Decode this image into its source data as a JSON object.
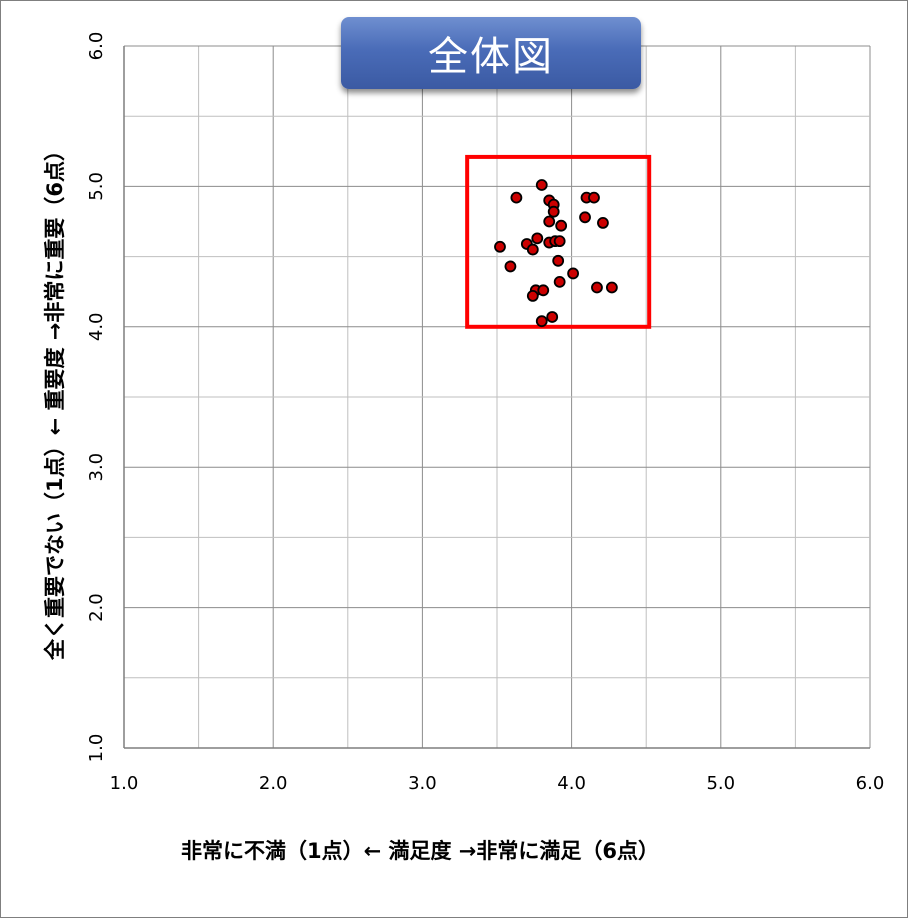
{
  "chart_data": {
    "type": "scatter",
    "title": "全体図",
    "xlabel": "非常に不満（1点）←  満足度  →非常に満足（6点）",
    "ylabel": "全く重要でない（1点）←  重要度  →非常に重要（6点）",
    "xlim": [
      1.0,
      6.0
    ],
    "ylim": [
      1.0,
      6.0
    ],
    "x_ticks": [
      "1.0",
      "2.0",
      "3.0",
      "4.0",
      "5.0",
      "6.0"
    ],
    "y_ticks": [
      "1.0",
      "2.0",
      "3.0",
      "4.0",
      "5.0",
      "6.0"
    ],
    "grid": true,
    "marker_color": "#cc0000",
    "marker_edge_color": "#000000",
    "highlight_box": {
      "x0": 3.3,
      "x1": 4.52,
      "y0": 4.0,
      "y1": 5.21,
      "color": "#ff0000"
    },
    "points": [
      {
        "x": 3.8,
        "y": 5.01
      },
      {
        "x": 3.63,
        "y": 4.92
      },
      {
        "x": 3.85,
        "y": 4.9
      },
      {
        "x": 4.1,
        "y": 4.92
      },
      {
        "x": 4.15,
        "y": 4.92
      },
      {
        "x": 3.88,
        "y": 4.87
      },
      {
        "x": 3.88,
        "y": 4.82
      },
      {
        "x": 4.09,
        "y": 4.78
      },
      {
        "x": 3.85,
        "y": 4.75
      },
      {
        "x": 4.21,
        "y": 4.74
      },
      {
        "x": 3.93,
        "y": 4.72
      },
      {
        "x": 3.77,
        "y": 4.63
      },
      {
        "x": 3.85,
        "y": 4.6
      },
      {
        "x": 3.89,
        "y": 4.61
      },
      {
        "x": 3.92,
        "y": 4.61
      },
      {
        "x": 3.7,
        "y": 4.59
      },
      {
        "x": 3.52,
        "y": 4.57
      },
      {
        "x": 3.74,
        "y": 4.55
      },
      {
        "x": 3.91,
        "y": 4.47
      },
      {
        "x": 3.59,
        "y": 4.43
      },
      {
        "x": 4.01,
        "y": 4.38
      },
      {
        "x": 3.92,
        "y": 4.32
      },
      {
        "x": 4.17,
        "y": 4.28
      },
      {
        "x": 4.27,
        "y": 4.28
      },
      {
        "x": 3.76,
        "y": 4.26
      },
      {
        "x": 3.81,
        "y": 4.26
      },
      {
        "x": 3.74,
        "y": 4.22
      },
      {
        "x": 3.87,
        "y": 4.07
      },
      {
        "x": 3.8,
        "y": 4.04
      }
    ]
  }
}
